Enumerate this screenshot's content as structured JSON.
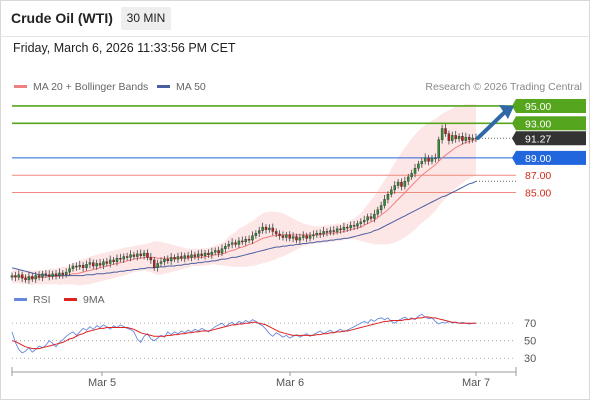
{
  "header": {
    "title": "Crude Oil (WTI)",
    "timeframe": "30 MIN",
    "datetime": "Friday, March 6, 2026 11:33:56 PM CET"
  },
  "legend": {
    "ma20_label": "MA 20 + Bollinger Bands",
    "ma50_label": "MA 50",
    "credit": "Research © 2026 Trading Central"
  },
  "rsi_legend": {
    "rsi_label": "RSI",
    "ma_label": "9MA"
  },
  "colors": {
    "resistance": "#55a51e",
    "current": "#333333",
    "ma50_level": "#2266dd",
    "support": "#ef8a80",
    "ma20": "#f08080",
    "ma50": "#4a5fa0",
    "band_fill": "#fde2e2",
    "candle_up": "#2f8f2f",
    "candle_down": "#b81f1f",
    "rsi_line": "#6688dd",
    "rsi_ma": "#dd2222",
    "arrow": "#2f67a7"
  },
  "chart_data": [
    {
      "type": "candlestick",
      "title": "Crude Oil (WTI)",
      "timeframe": "30 MIN",
      "x_ticks": [
        "Mar 5",
        "Mar 6",
        "Mar 7"
      ],
      "ylim": [
        73.5,
        96.5
      ],
      "price_levels": [
        {
          "label": "95.00",
          "value": 95.0,
          "kind": "resistance"
        },
        {
          "label": "93.00",
          "value": 93.0,
          "kind": "resistance"
        },
        {
          "label": "91.27",
          "value": 91.27,
          "kind": "current"
        },
        {
          "label": "89.00",
          "value": 89.0,
          "kind": "ma50"
        },
        {
          "label": "87.00",
          "value": 87.0,
          "kind": "support"
        },
        {
          "label": "85.00",
          "value": 85.0,
          "kind": "support"
        }
      ],
      "close": [
        75.4,
        75.2,
        75.5,
        75.1,
        74.9,
        75.3,
        75.0,
        75.4,
        75.2,
        75.6,
        75.5,
        75.3,
        75.6,
        75.4,
        75.7,
        75.5,
        75.8,
        76.2,
        76.5,
        76.4,
        76.6,
        76.3,
        76.7,
        76.9,
        76.5,
        76.8,
        76.6,
        77.0,
        76.8,
        77.2,
        77.0,
        77.4,
        77.3,
        77.6,
        77.5,
        77.8,
        77.6,
        77.9,
        77.7,
        78.0,
        77.5,
        77.2,
        76.3,
        76.8,
        77.0,
        77.3,
        77.1,
        77.5,
        77.3,
        77.6,
        77.4,
        77.7,
        77.5,
        77.8,
        77.6,
        77.9,
        77.7,
        78.0,
        77.8,
        78.1,
        78.3,
        78.0,
        78.5,
        78.8,
        79.0,
        79.2,
        79.0,
        79.4,
        79.3,
        79.6,
        79.5,
        80.0,
        80.3,
        80.6,
        81.0,
        80.7,
        80.9,
        80.5,
        80.2,
        80.0,
        79.8,
        80.1,
        79.7,
        79.9,
        79.5,
        79.8,
        80.0,
        79.7,
        80.0,
        80.1,
        80.3,
        80.2,
        80.5,
        80.4,
        80.6,
        80.5,
        80.8,
        80.7,
        81.0,
        80.9,
        81.2,
        81.1,
        81.4,
        81.6,
        81.8,
        82.2,
        82.0,
        82.5,
        83.0,
        83.5,
        84.2,
        84.8,
        85.3,
        85.8,
        86.2,
        85.7,
        86.3,
        86.8,
        87.2,
        87.8,
        88.3,
        88.6,
        89.0,
        88.6,
        88.9,
        89.0,
        91.1,
        92.4,
        91.8,
        91.0,
        91.6,
        91.2,
        91.5,
        91.0,
        91.4,
        91.1,
        91.3,
        91.27
      ],
      "ma20": [
        75.3,
        75.3,
        75.3,
        75.2,
        75.2,
        75.2,
        75.1,
        75.2,
        75.2,
        75.2,
        75.2,
        75.3,
        75.3,
        75.3,
        75.3,
        75.4,
        75.4,
        75.5,
        75.6,
        75.6,
        75.7,
        75.8,
        75.9,
        76.0,
        76.1,
        76.2,
        76.3,
        76.4,
        76.5,
        76.6,
        76.7,
        76.8,
        76.9,
        77.0,
        77.1,
        77.2,
        77.3,
        77.4,
        77.4,
        77.5,
        77.5,
        77.5,
        77.5,
        77.4,
        77.4,
        77.4,
        77.4,
        77.4,
        77.4,
        77.4,
        77.4,
        77.4,
        77.4,
        77.5,
        77.5,
        77.5,
        77.5,
        77.6,
        77.6,
        77.7,
        77.8,
        77.8,
        77.9,
        78.0,
        78.2,
        78.3,
        78.4,
        78.6,
        78.7,
        78.8,
        79.0,
        79.1,
        79.3,
        79.5,
        79.7,
        79.8,
        79.9,
        80.0,
        80.0,
        80.1,
        80.1,
        80.1,
        80.1,
        80.1,
        80.1,
        80.1,
        80.1,
        80.1,
        80.1,
        80.1,
        80.1,
        80.1,
        80.2,
        80.2,
        80.3,
        80.3,
        80.4,
        80.4,
        80.5,
        80.6,
        80.7,
        80.8,
        80.9,
        81.0,
        81.2,
        81.4,
        81.6,
        81.8,
        82.1,
        82.4,
        82.7,
        83.0,
        83.4,
        83.8,
        84.2,
        84.6,
        85.0,
        85.4,
        85.8,
        86.2,
        86.6,
        87.0,
        87.3,
        87.6,
        87.9,
        88.2,
        88.6,
        89.0,
        89.3,
        89.6,
        89.9,
        90.2,
        90.4,
        90.6,
        90.8,
        90.9,
        91.0,
        91.1
      ],
      "bb_width": [
        0.8,
        0.8,
        0.8,
        0.8,
        0.8,
        0.8,
        0.8,
        0.8,
        0.8,
        0.8,
        0.8,
        0.9,
        0.9,
        0.9,
        1.0,
        1.0,
        1.0,
        1.1,
        1.2,
        1.3,
        1.4,
        1.5,
        1.5,
        1.6,
        1.6,
        1.6,
        1.6,
        1.6,
        1.6,
        1.6,
        1.6,
        1.6,
        1.6,
        1.6,
        1.6,
        1.5,
        1.5,
        1.5,
        1.5,
        1.5,
        1.6,
        1.7,
        1.9,
        1.9,
        1.9,
        1.8,
        1.7,
        1.6,
        1.5,
        1.4,
        1.3,
        1.2,
        1.1,
        1.0,
        1.0,
        1.0,
        1.0,
        1.0,
        1.0,
        1.0,
        1.1,
        1.2,
        1.3,
        1.5,
        1.7,
        1.9,
        2.0,
        2.2,
        2.3,
        2.4,
        2.5,
        2.6,
        2.7,
        2.8,
        2.9,
        2.9,
        2.9,
        2.8,
        2.7,
        2.6,
        2.5,
        2.3,
        2.1,
        1.9,
        1.7,
        1.5,
        1.3,
        1.2,
        1.1,
        1.0,
        1.0,
        1.0,
        1.0,
        1.0,
        1.0,
        1.0,
        1.0,
        1.0,
        1.0,
        1.0,
        1.1,
        1.2,
        1.4,
        1.6,
        1.9,
        2.2,
        2.5,
        2.8,
        3.1,
        3.4,
        3.7,
        4.0,
        4.3,
        4.6,
        4.8,
        5.0,
        5.2,
        5.3,
        5.4,
        5.5,
        5.5,
        5.5,
        5.5,
        5.5,
        5.4,
        5.3,
        5.2,
        5.1,
        5.0,
        4.9,
        4.8,
        4.7,
        4.6,
        4.5,
        4.4,
        4.3,
        4.2,
        4.1
      ],
      "ma50": [
        76.3,
        76.2,
        76.1,
        76.0,
        75.9,
        75.8,
        75.7,
        75.6,
        75.5,
        75.5,
        75.4,
        75.4,
        75.4,
        75.4,
        75.4,
        75.4,
        75.4,
        75.4,
        75.4,
        75.4,
        75.4,
        75.4,
        75.5,
        75.5,
        75.5,
        75.6,
        75.6,
        75.6,
        75.7,
        75.7,
        75.8,
        75.8,
        75.9,
        75.9,
        76.0,
        76.0,
        76.1,
        76.1,
        76.2,
        76.2,
        76.3,
        76.3,
        76.3,
        76.4,
        76.4,
        76.4,
        76.5,
        76.5,
        76.5,
        76.6,
        76.6,
        76.7,
        76.7,
        76.8,
        76.8,
        76.9,
        76.9,
        77.0,
        77.0,
        77.1,
        77.1,
        77.2,
        77.3,
        77.3,
        77.4,
        77.5,
        77.5,
        77.6,
        77.7,
        77.8,
        77.9,
        78.0,
        78.1,
        78.2,
        78.3,
        78.4,
        78.5,
        78.6,
        78.7,
        78.7,
        78.8,
        78.8,
        78.9,
        78.9,
        79.0,
        79.0,
        79.1,
        79.1,
        79.2,
        79.2,
        79.3,
        79.3,
        79.4,
        79.4,
        79.5,
        79.5,
        79.6,
        79.6,
        79.7,
        79.7,
        79.8,
        79.9,
        80.0,
        80.1,
        80.2,
        80.3,
        80.4,
        80.6,
        80.7,
        80.9,
        81.1,
        81.3,
        81.5,
        81.7,
        81.9,
        82.1,
        82.3,
        82.5,
        82.7,
        82.9,
        83.1,
        83.3,
        83.5,
        83.7,
        83.9,
        84.1,
        84.3,
        84.5,
        84.6,
        84.8,
        85.0,
        85.2,
        85.4,
        85.6,
        85.8,
        86.0,
        86.1,
        86.3
      ],
      "projection_arrow": {
        "from": 91.3,
        "to": 95.0
      }
    },
    {
      "type": "line",
      "title": "RSI",
      "y_ticks": [
        70,
        50,
        30
      ],
      "ylim": [
        20,
        85
      ],
      "series": [
        {
          "name": "RSI",
          "values": [
            60,
            48,
            40,
            36,
            38,
            42,
            37,
            40,
            44,
            42,
            45,
            50,
            47,
            43,
            48,
            51,
            55,
            58,
            60,
            56,
            60,
            64,
            62,
            66,
            63,
            67,
            65,
            68,
            66,
            63,
            67,
            65,
            68,
            66,
            64,
            63,
            60,
            52,
            48,
            55,
            58,
            52,
            50,
            53,
            56,
            54,
            60,
            57,
            60,
            58,
            61,
            59,
            62,
            60,
            63,
            61,
            64,
            62,
            60,
            63,
            66,
            68,
            70,
            66,
            69,
            71,
            68,
            72,
            70,
            73,
            71,
            74,
            72,
            69,
            67,
            63,
            58,
            55,
            59,
            57,
            54,
            56,
            53,
            55,
            57,
            54,
            56,
            58,
            55,
            57,
            59,
            61,
            58,
            60,
            62,
            59,
            61,
            63,
            60,
            62,
            64,
            66,
            68,
            70,
            72,
            70,
            74,
            72,
            75,
            76,
            74,
            76,
            72,
            70,
            73,
            75,
            77,
            74,
            76,
            74,
            78,
            80,
            77,
            75,
            76,
            72,
            69,
            71,
            70,
            72,
            70,
            71,
            70,
            71,
            70,
            69,
            70,
            70
          ]
        },
        {
          "name": "9MA",
          "values": [
            50,
            49,
            47,
            45,
            43,
            42,
            41,
            41,
            41,
            42,
            43,
            44,
            45,
            46,
            47,
            48,
            50,
            52,
            53,
            55,
            57,
            58,
            60,
            61,
            62,
            63,
            64,
            64,
            65,
            65,
            65,
            65,
            65,
            65,
            65,
            64,
            63,
            61,
            59,
            58,
            57,
            56,
            55,
            55,
            55,
            55,
            56,
            56,
            57,
            57,
            58,
            58,
            59,
            59,
            60,
            60,
            61,
            61,
            61,
            62,
            63,
            64,
            65,
            66,
            67,
            68,
            68,
            69,
            69,
            70,
            70,
            71,
            71,
            70,
            69,
            68,
            66,
            64,
            62,
            60,
            59,
            58,
            57,
            56,
            56,
            56,
            56,
            56,
            56,
            56,
            57,
            57,
            58,
            58,
            59,
            59,
            60,
            60,
            61,
            61,
            62,
            63,
            64,
            65,
            66,
            67,
            68,
            69,
            70,
            71,
            72,
            72,
            73,
            73,
            73,
            73,
            74,
            74,
            75,
            75,
            76,
            76,
            77,
            77,
            76,
            76,
            75,
            74,
            73,
            72,
            71,
            71,
            70,
            70,
            70,
            70,
            70,
            70
          ]
        }
      ]
    }
  ]
}
